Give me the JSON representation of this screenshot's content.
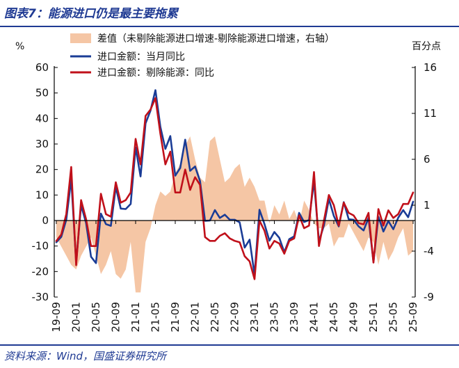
{
  "figure": {
    "title": "图表7：能源进口仍是最主要拖累",
    "source": "资料来源：Wind，国盛证券研究所"
  },
  "chart_data": {
    "type": "line",
    "left_unit": "%",
    "right_unit": "百分点",
    "ylim_left": [
      -30,
      60
    ],
    "ylim_right": [
      -9,
      16
    ],
    "left_ticks": [
      -30,
      -20,
      -10,
      0,
      10,
      20,
      30,
      40,
      50,
      60
    ],
    "right_ticks": [
      -9,
      -4,
      1,
      6,
      11,
      16
    ],
    "x_ticks": [
      "19-09",
      "20-01",
      "20-05",
      "20-09",
      "21-01",
      "21-05",
      "21-09",
      "22-01",
      "22-05",
      "22-09",
      "23-01",
      "23-05",
      "23-09",
      "24-01",
      "24-05",
      "24-09",
      "25-01",
      "25-05",
      "25-09"
    ],
    "x": [
      "19-09",
      "19-10",
      "19-11",
      "19-12",
      "20-01",
      "20-02",
      "20-03",
      "20-04",
      "20-05",
      "20-06",
      "20-07",
      "20-08",
      "20-09",
      "20-10",
      "20-11",
      "20-12",
      "21-01",
      "21-02",
      "21-03",
      "21-04",
      "21-05",
      "21-06",
      "21-07",
      "21-08",
      "21-09",
      "21-10",
      "21-11",
      "21-12",
      "22-01",
      "22-02",
      "22-03",
      "22-04",
      "22-05",
      "22-06",
      "22-07",
      "22-08",
      "22-09",
      "22-10",
      "22-11",
      "22-12",
      "23-01",
      "23-02",
      "23-03",
      "23-04",
      "23-05",
      "23-06",
      "23-07",
      "23-08",
      "23-09",
      "23-10",
      "23-11",
      "23-12",
      "24-01",
      "24-02",
      "24-03",
      "24-04",
      "24-05",
      "24-06",
      "24-07",
      "24-08",
      "24-09",
      "24-10",
      "24-11",
      "24-12",
      "25-01",
      "25-02",
      "25-03",
      "25-04",
      "25-05",
      "25-06",
      "25-07",
      "25-08",
      "25-09"
    ],
    "series": [
      {
        "name": "差值（未剔除能源进口增速-剔除能源进口增速，右轴）",
        "axis": "right",
        "style": "area",
        "color": "#f5c6a5",
        "values": [
          -2.5,
          -3.5,
          -4.5,
          -5.5,
          -6.0,
          -4.5,
          -3.5,
          -2.5,
          -4.5,
          -6.5,
          -5.5,
          -4.0,
          -6.5,
          -7.0,
          -6.0,
          -3.0,
          -8.5,
          -8.5,
          -3.0,
          -1.5,
          1.0,
          2.5,
          2.0,
          2.5,
          4.5,
          5.5,
          7.5,
          8.5,
          6.0,
          4.0,
          3.5,
          8.0,
          8.5,
          6.0,
          3.5,
          4.0,
          5.0,
          5.5,
          3.0,
          4.0,
          3.0,
          1.5,
          1.5,
          -1.0,
          1.0,
          0.0,
          1.5,
          -0.5,
          0.5,
          -1.0,
          1.5,
          0.5,
          -1.0,
          -1.5,
          -1.5,
          -1.0,
          -3.5,
          -2.5,
          -2.5,
          -1.0,
          -2.0,
          -3.0,
          -4.0,
          -2.5,
          -3.0,
          -5.5,
          -3.0,
          -5.0,
          -4.0,
          -2.5,
          -1.5,
          -4.5,
          -4.0
        ]
      },
      {
        "name": "进口金额：当月同比",
        "axis": "left",
        "style": "line",
        "color": "#1a3c96",
        "values": [
          -8.5,
          -6.4,
          0.3,
          16.3,
          -16.4,
          6.0,
          -1.0,
          -14.2,
          -16.7,
          2.7,
          -1.4,
          -2.1,
          13.2,
          4.7,
          4.5,
          6.5,
          28.7,
          17.3,
          38.1,
          43.1,
          51.1,
          36.7,
          28.1,
          33.1,
          17.6,
          20.6,
          31.7,
          19.5,
          21.2,
          15.5,
          -0.1,
          0.0,
          4.1,
          1.0,
          2.3,
          0.3,
          0.3,
          -0.7,
          -10.6,
          -7.5,
          -21.3,
          4.2,
          -1.4,
          -7.9,
          -4.5,
          -6.8,
          -12.4,
          -7.3,
          -6.2,
          3.0,
          -0.6,
          0.2,
          15.5,
          -8.2,
          -1.9,
          8.4,
          1.8,
          -2.3,
          7.2,
          0.5,
          0.3,
          -2.3,
          -3.9,
          1.0,
          -16.3,
          1.5,
          -4.3,
          -0.2,
          -3.4,
          1.1,
          4.1,
          1.3,
          7.4
        ]
      },
      {
        "name": "进口金额：剔除能源：同比",
        "axis": "left",
        "style": "line",
        "color": "#c0101a",
        "values": [
          -8.0,
          -5.5,
          2.5,
          21.0,
          -17.5,
          8.0,
          0.5,
          -10.0,
          -10.0,
          10.5,
          2.5,
          1.5,
          15.0,
          7.0,
          8.0,
          11.0,
          32.0,
          22.0,
          41.0,
          43.5,
          48.0,
          34.0,
          22.0,
          27.0,
          11.0,
          11.0,
          20.0,
          12.0,
          17.0,
          14.0,
          -6.5,
          -8.0,
          -8.0,
          -6.0,
          -5.0,
          -7.0,
          -8.0,
          -8.5,
          -14.0,
          -16.0,
          -23.0,
          0.0,
          -4.0,
          -11.0,
          -8.0,
          -9.0,
          -13.0,
          -8.0,
          -7.0,
          2.0,
          -3.0,
          -2.0,
          19.0,
          -10.0,
          0.0,
          10.0,
          6.0,
          -2.0,
          7.0,
          3.0,
          2.0,
          -1.0,
          -1.5,
          3.0,
          -16.5,
          4.5,
          -2.0,
          4.0,
          1.0,
          2.5,
          6.5,
          6.5,
          11.0
        ]
      }
    ]
  }
}
